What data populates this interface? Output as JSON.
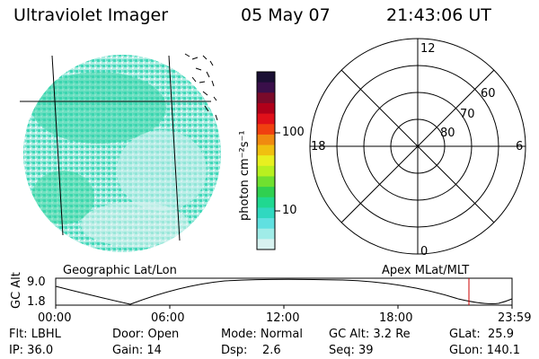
{
  "header": {
    "instrument": "Ultraviolet Imager",
    "date": "05 May 07",
    "time": "21:43:06 UT"
  },
  "colorbar": {
    "unit_label": "photon cm⁻²s⁻¹",
    "ticks": [
      "100",
      "10"
    ],
    "colors_top_to_bottom": [
      "#1a0f33",
      "#3a0f4a",
      "#7a0a2a",
      "#b0001a",
      "#e0101a",
      "#f04010",
      "#f08a10",
      "#f0c010",
      "#e8f020",
      "#b8f020",
      "#70e030",
      "#30d050",
      "#20d890",
      "#30d8c0",
      "#60e0e0",
      "#a0ece8",
      "#d8f2f0"
    ]
  },
  "image_panel": {
    "label": "Geographic Lat/Lon",
    "emission_color": "#3cd8b0",
    "grid_color": "#000000"
  },
  "polar_panel": {
    "label": "Apex MLat/MLT",
    "mlt_labels": {
      "top": "12",
      "left": "18",
      "right": "6",
      "bottom": "0"
    },
    "lat_labels": [
      "60",
      "70",
      "80"
    ]
  },
  "orbit_plot": {
    "ylabel": "GC Alt",
    "yticks": [
      "9.0",
      "1.8"
    ],
    "xticks": [
      "00:00",
      "06:00",
      "12:00",
      "18:00",
      "23:59"
    ],
    "marker_color": "#cc0000"
  },
  "info_rows": [
    [
      "Flt: LBHL",
      "Door: Open",
      "Mode: Normal",
      "GC Alt: 3.2 Re",
      "GLat:  25.9"
    ],
    [
      "IP: 36.0",
      "Gain: 14",
      "Dsp:    2.6",
      "Seq: 39",
      "GLon: 140.1"
    ]
  ]
}
